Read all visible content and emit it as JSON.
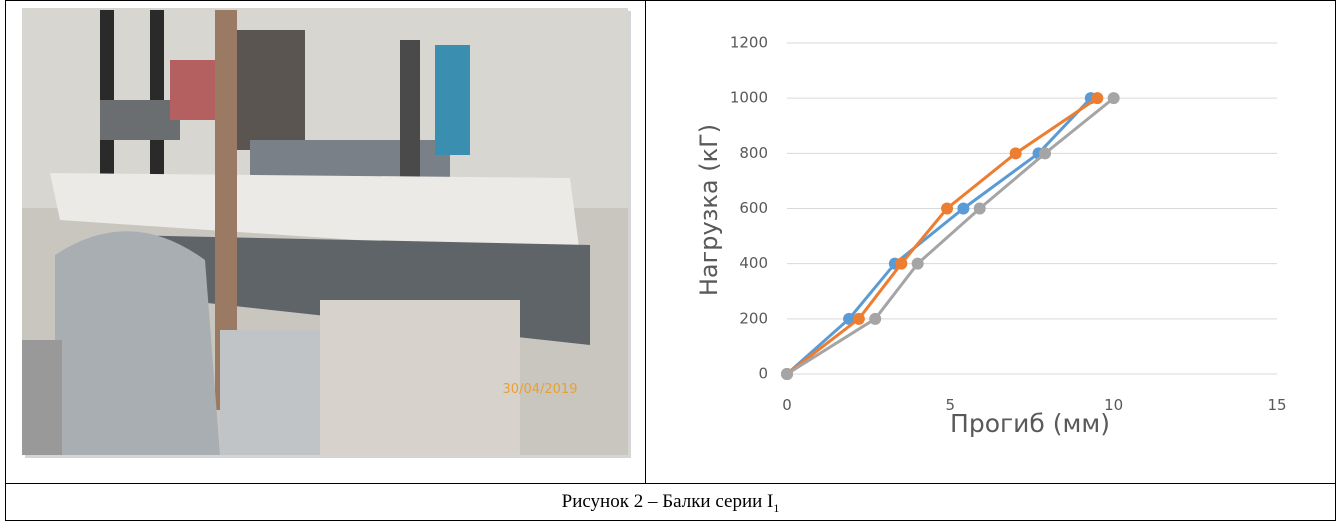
{
  "photo": {
    "timestamp": "30/04/2019"
  },
  "chart_data": {
    "type": "line",
    "xlabel": "Прогиб (мм)",
    "ylabel": "Нагрузка (кГ)",
    "xlim": [
      0,
      15
    ],
    "xticks": [
      0,
      5,
      10,
      15
    ],
    "ylim": [
      0,
      1200
    ],
    "yticks": [
      0,
      200,
      400,
      600,
      800,
      1000,
      1200
    ],
    "grid": true,
    "series": [
      {
        "color": "#5b9bd5",
        "x": [
          0,
          1.9,
          3.3,
          5.4,
          7.7,
          9.3
        ],
        "values": [
          0,
          200,
          400,
          600,
          800,
          1000
        ]
      },
      {
        "color": "#ed7d31",
        "x": [
          0,
          2.2,
          3.5,
          4.9,
          7.0,
          9.5
        ],
        "values": [
          0,
          200,
          400,
          600,
          800,
          1000
        ]
      },
      {
        "color": "#a5a5a5",
        "x": [
          0,
          2.7,
          4.0,
          5.9,
          7.9,
          10.0
        ],
        "values": [
          0,
          200,
          400,
          600,
          800,
          1000
        ]
      }
    ]
  },
  "caption": {
    "text": "Рисунок 2 – Балки серии I",
    "subscript": "1"
  }
}
